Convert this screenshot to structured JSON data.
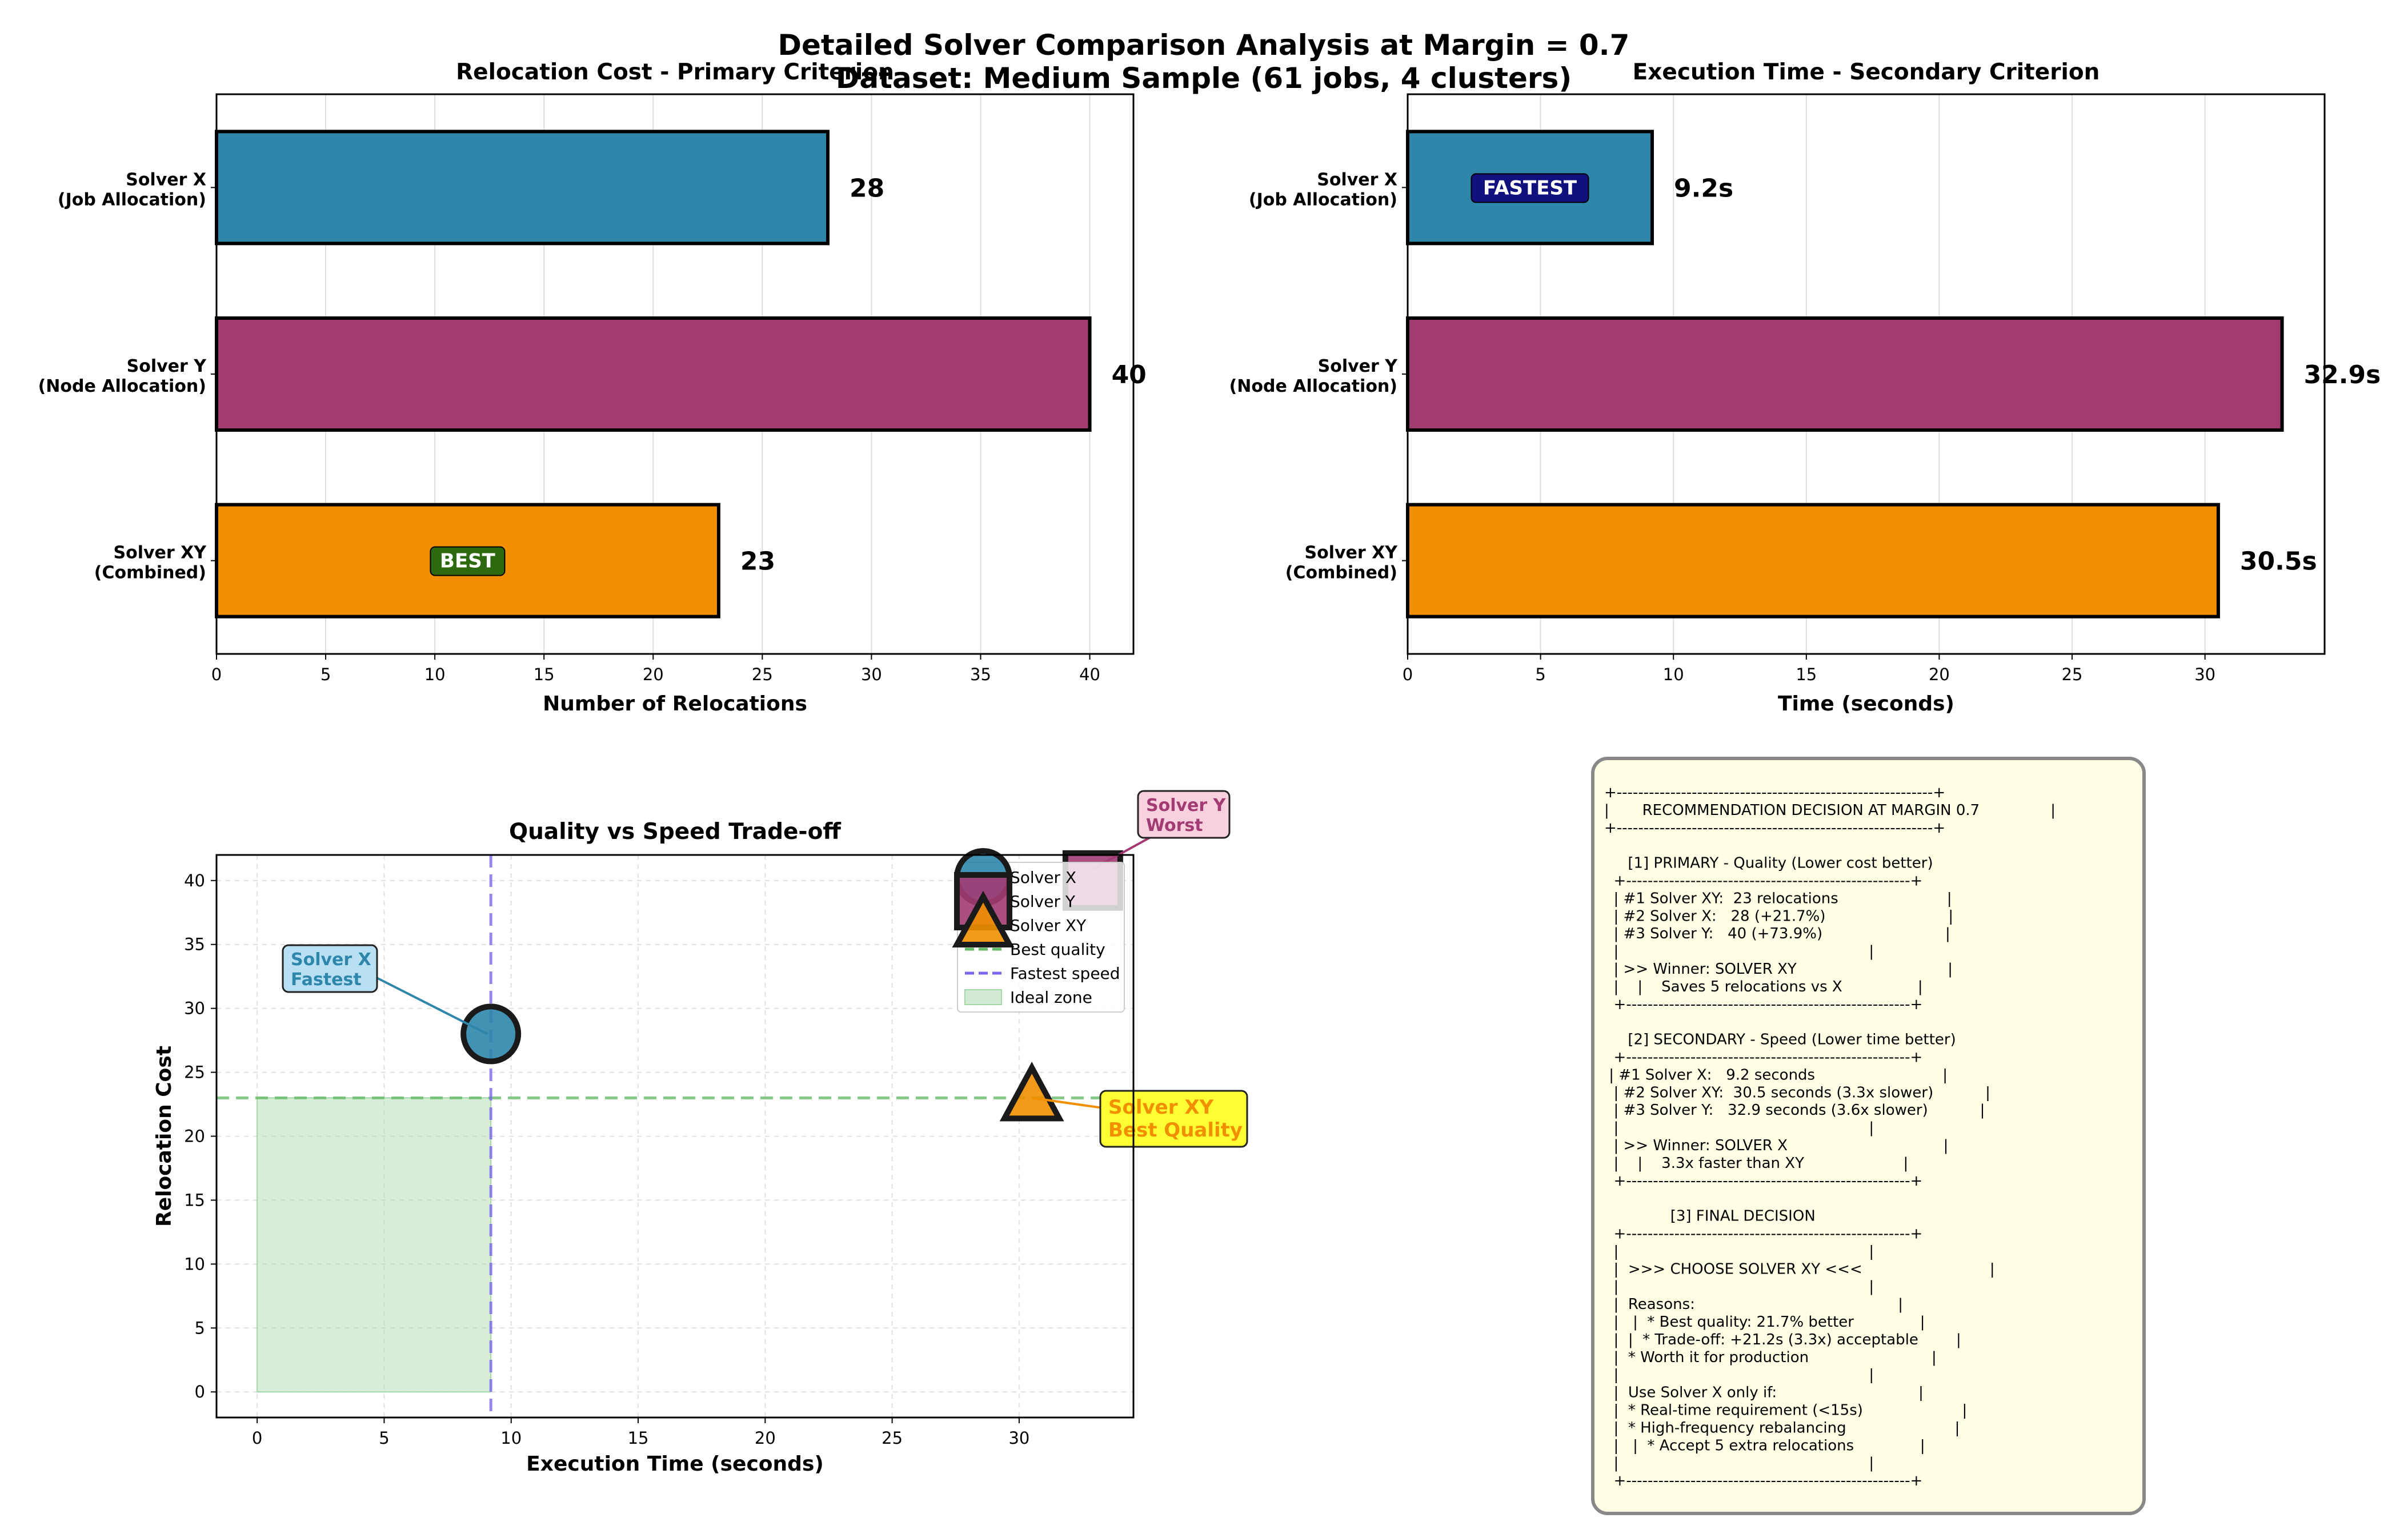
{
  "figure": {
    "suptitle_line1": "Detailed Solver Comparison Analysis at Margin = 0.7",
    "suptitle_line2": "Dataset: Medium Sample (61 jobs, 4 clusters)"
  },
  "colors": {
    "solver_x": "#2E86AB",
    "solver_y": "#A23B72",
    "solver_xy": "#F18F01",
    "best_badge": "#2D6A0F",
    "fastest_badge": "#10107E",
    "best_quality_line": "#66BB6A",
    "fastest_line": "#7B68EE",
    "ideal_zone": "#A5D6A7",
    "text_panel_bg": "#FFFFE6"
  },
  "chart_data": [
    {
      "type": "bar",
      "orientation": "horizontal",
      "title": "Relocation Cost - Primary Criterion",
      "xlabel": "Number of Relocations",
      "xlim": [
        0,
        42
      ],
      "xticks": [
        0,
        5,
        10,
        15,
        20,
        25,
        30,
        35,
        40
      ],
      "grid": "x",
      "categories": [
        {
          "line1": "Solver X",
          "line2": "(Job Allocation)"
        },
        {
          "line1": "Solver Y",
          "line2": "(Node Allocation)"
        },
        {
          "line1": "Solver XY",
          "line2": "(Combined)"
        }
      ],
      "values": [
        28,
        40,
        23
      ],
      "value_labels": [
        "28",
        "40",
        "23"
      ],
      "badge": {
        "text": "BEST",
        "bar_index": 2
      }
    },
    {
      "type": "bar",
      "orientation": "horizontal",
      "title": "Execution Time - Secondary Criterion",
      "xlabel": "Time (seconds)",
      "xlim": [
        0,
        34.5
      ],
      "xticks": [
        0,
        5,
        10,
        15,
        20,
        25,
        30
      ],
      "grid": "x",
      "categories": [
        {
          "line1": "Solver X",
          "line2": "(Job Allocation)"
        },
        {
          "line1": "Solver Y",
          "line2": "(Node Allocation)"
        },
        {
          "line1": "Solver XY",
          "line2": "(Combined)"
        }
      ],
      "values": [
        9.2,
        32.9,
        30.5
      ],
      "value_labels": [
        "9.2s",
        "32.9s",
        "30.5s"
      ],
      "badge": {
        "text": "FASTEST",
        "bar_index": 0
      }
    },
    {
      "type": "scatter",
      "title": "Quality vs Speed Trade-off",
      "xlabel": "Execution Time (seconds)",
      "ylabel": "Relocation Cost",
      "xlim": [
        -1.6,
        34.5
      ],
      "ylim": [
        -2,
        42
      ],
      "xticks": [
        0,
        5,
        10,
        15,
        20,
        25,
        30
      ],
      "yticks": [
        0,
        5,
        10,
        15,
        20,
        25,
        30,
        35,
        40
      ],
      "grid": "both, dashed",
      "points": [
        {
          "name": "Solver X",
          "x": 9.2,
          "y": 28,
          "marker": "circle"
        },
        {
          "name": "Solver Y",
          "x": 32.9,
          "y": 40,
          "marker": "square"
        },
        {
          "name": "Solver XY",
          "x": 30.5,
          "y": 23,
          "marker": "triangle"
        }
      ],
      "best_quality_y": 23,
      "fastest_x": 9.2,
      "ideal_zone": {
        "x": [
          0,
          9.2
        ],
        "y": [
          0,
          23
        ]
      },
      "annotations": [
        {
          "line1": "Solver X",
          "line2": "Fastest",
          "target": 0
        },
        {
          "line1": "Solver Y",
          "line2": "Worst",
          "target": 1
        },
        {
          "line1": "Solver XY",
          "line2": "Best Quality",
          "target": 2
        }
      ],
      "legend": {
        "placement": "top-right",
        "entries": [
          "Solver X",
          "Solver Y",
          "Solver XY",
          "Best quality",
          "Fastest speed",
          "Ideal zone"
        ]
      }
    }
  ],
  "decision_panel": {
    "lines": [
      "+-----------------------------------------------------------+",
      "|       RECOMMENDATION DECISION AT MARGIN 0.7               |",
      "+-----------------------------------------------------------+",
      "",
      "     [1] PRIMARY - Quality (Lower cost better)",
      "  +-----------------------------------------------------+",
      "  | #1 Solver XY:  23 relocations                       |",
      "  | #2 Solver X:   28 (+21.7%)                          |",
      "  | #3 Solver Y:   40 (+73.9%)                          |",
      "  |                                                     |",
      "  | >> Winner: SOLVER XY                                |",
      "  |    |    Saves 5 relocations vs X                |",
      "  +-----------------------------------------------------+",
      "",
      "     [2] SECONDARY - Speed (Lower time better)",
      "  +-----------------------------------------------------+",
      " | #1 Solver X:   9.2 seconds                           |",
      "  | #2 Solver XY:  30.5 seconds (3.3x slower)           |",
      "  | #3 Solver Y:   32.9 seconds (3.6x slower)           |",
      "  |                                                     |",
      "  | >> Winner: SOLVER X                                 |",
      "  |    |    3.3x faster than XY                     |",
      "  +-----------------------------------------------------+",
      "",
      "              [3] FINAL DECISION",
      "  +-----------------------------------------------------+",
      "  |                                                     |",
      "  |  >>> CHOOSE SOLVER XY <<<                           |",
      "  |                                                     |",
      "  |  Reasons:                                           |",
      "  |   |  * Best quality: 21.7% better              |",
      "  |  |  * Trade-off: +21.2s (3.3x) acceptable        |",
      "  |  * Worth it for production                          |",
      "  |                                                     |",
      "  |  Use Solver X only if:                              |",
      "  |  * Real-time requirement (<15s)                     |",
      "  |  * High-frequency rebalancing                       |",
      "  |   |  * Accept 5 extra relocations              |",
      "  |                                                     |",
      "  +-----------------------------------------------------+"
    ]
  }
}
